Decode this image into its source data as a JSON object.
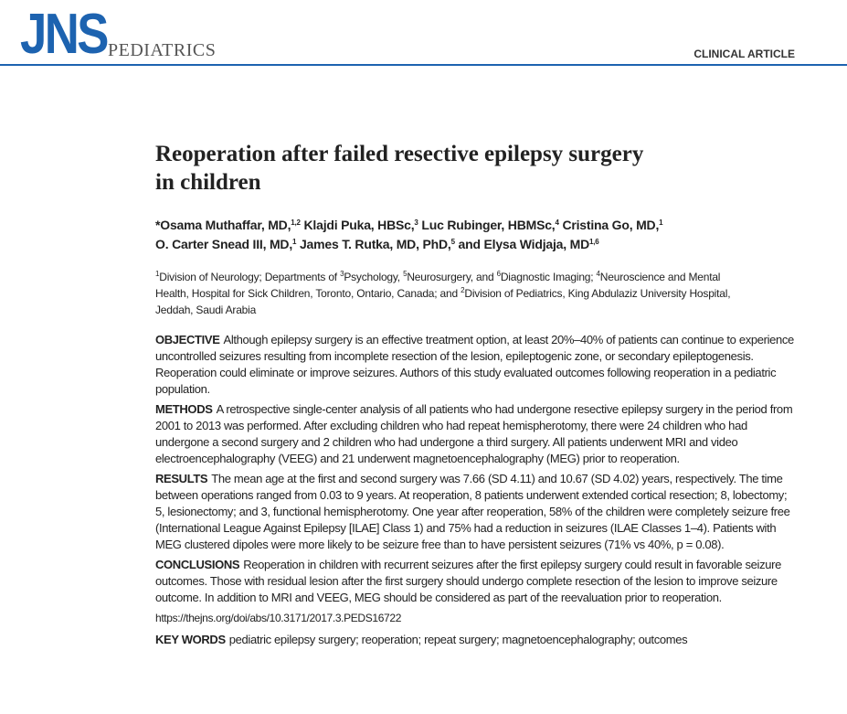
{
  "header": {
    "logo": "JNS",
    "journal": "PEDIATRICS",
    "article_type": "CLINICAL ARTICLE"
  },
  "title": {
    "lines": [
      "Reoperation after failed resective epilepsy surgery",
      "in children"
    ]
  },
  "authors": {
    "lines": [
      [
        {
          "text": "*Osama Muthaffar, MD,",
          "sup": "1,2"
        },
        {
          "text": "Klajdi Puka, HBSc,",
          "sup": "3"
        },
        {
          "text": "Luc Rubinger, HBMSc,",
          "sup": "4"
        },
        {
          "text": "Cristina Go, MD,",
          "sup": "1"
        }
      ],
      [
        {
          "text": "O. Carter Snead III, MD,",
          "sup": "1"
        },
        {
          "text": "James T. Rutka, MD, PhD,",
          "sup": "5"
        },
        {
          "text": "and Elysa Widjaja, MD",
          "sup": "1,6"
        }
      ]
    ]
  },
  "affiliations": [
    {
      "sup": "1"
    },
    {
      "text": "Division of Neurology; Departments of "
    },
    {
      "sup": "3"
    },
    {
      "text": "Psychology, "
    },
    {
      "sup": "5"
    },
    {
      "text": "Neurosurgery, and "
    },
    {
      "sup": "6"
    },
    {
      "text": "Diagnostic Imaging; "
    },
    {
      "sup": "4"
    },
    {
      "text": "Neuroscience and Mental Health, Hospital for Sick Children, Toronto, Ontario, Canada; and "
    },
    {
      "sup": "2"
    },
    {
      "text": "Division of Pediatrics, King Abdulaziz University Hospital, Jeddah, Saudi Arabia"
    }
  ],
  "abstract": [
    {
      "label": "OBJECTIVE",
      "text": "Although epilepsy surgery is an effective treatment option, at least 20%–40% of patients can continue to experience uncontrolled seizures resulting from incomplete resection of the lesion, epileptogenic zone, or secondary epileptogenesis. Reoperation could eliminate or improve seizures. Authors of this study evaluated outcomes following reoperation in a pediatric population."
    },
    {
      "label": "METHODS",
      "text": "A retrospective single-center analysis of all patients who had undergone resective epilepsy surgery in the period from 2001 to 2013 was performed. After excluding children who had repeat hemispherotomy, there were 24 children who had undergone a second surgery and 2 children who had undergone a third surgery. All patients underwent MRI and video electroencephalography (VEEG) and 21 underwent magnetoencephalography (MEG) prior to reoperation."
    },
    {
      "label": "RESULTS",
      "text": "The mean age at the first and second surgery was 7.66 (SD 4.11) and 10.67 (SD 4.02) years, respectively. The time between operations ranged from 0.03 to 9 years. At reoperation, 8 patients underwent extended cortical resection; 8, lobectomy; 5, lesionectomy; and 3, functional hemispherotomy. One year after reoperation, 58% of the children were completely seizure free (International League Against Epilepsy [ILAE] Class 1) and 75% had a reduction in seizures (ILAE Classes 1–4). Patients with MEG clustered dipoles were more likely to be seizure free than to have persistent seizures (71% vs 40%, p = 0.08)."
    },
    {
      "label": "CONCLUSIONS",
      "text": "Reoperation in children with recurrent seizures after the first epilepsy surgery could result in favorable seizure outcomes. Those with residual lesion after the first surgery should undergo complete resection of the lesion to improve seizure outcome. In addition to MRI and VEEG, MEG should be considered as part of the reevaluation prior to reoperation."
    }
  ],
  "doi": "https://thejns.org/doi/abs/10.3171/2017.3.PEDS16722",
  "keywords": {
    "label": "KEY WORDS",
    "text": "pediatric epilepsy surgery; reoperation; repeat surgery; magnetoencephalography; outcomes"
  }
}
